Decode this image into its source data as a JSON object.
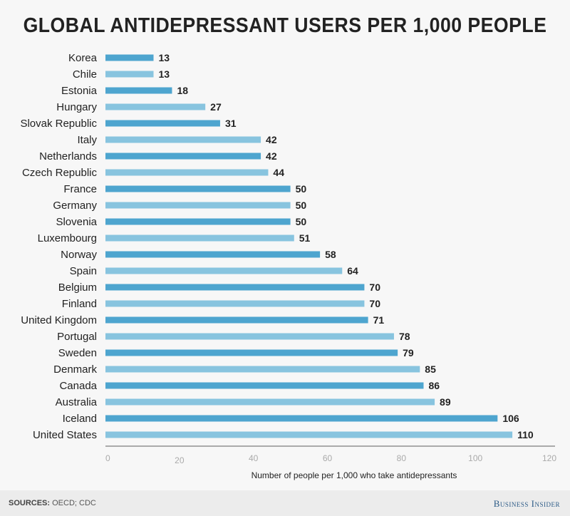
{
  "chart_data": {
    "type": "bar",
    "orientation": "horizontal",
    "title": "GLOBAL ANTIDEPRESSANT USERS PER 1,000 PEOPLE",
    "xlabel": "Number of people per 1,000 who take antidepressants",
    "ylabel": "",
    "xlim": [
      0,
      120
    ],
    "xticks": [
      "0",
      "20",
      "40",
      "60",
      "80",
      "100",
      "120"
    ],
    "grid": false,
    "categories": [
      "Korea",
      "Chile",
      "Estonia",
      "Hungary",
      "Slovak Republic",
      "Italy",
      "Netherlands",
      "Czech Republic",
      "France",
      "Germany",
      "Slovenia",
      "Luxembourg",
      "Norway",
      "Spain",
      "Belgium",
      "Finland",
      "United Kingdom",
      "Portugal",
      "Sweden",
      "Denmark",
      "Canada",
      "Australia",
      "Iceland",
      "United States"
    ],
    "values": [
      13,
      13,
      18,
      27,
      31,
      42,
      42,
      44,
      50,
      50,
      50,
      51,
      58,
      64,
      70,
      70,
      71,
      78,
      79,
      85,
      86,
      89,
      106,
      110
    ],
    "colors": {
      "dark": "#4ea5cf",
      "light": "#88c4df"
    }
  },
  "footer": {
    "sources_label": "SOURCES:",
    "sources": "OECD; CDC",
    "brand": "Business Insider"
  }
}
